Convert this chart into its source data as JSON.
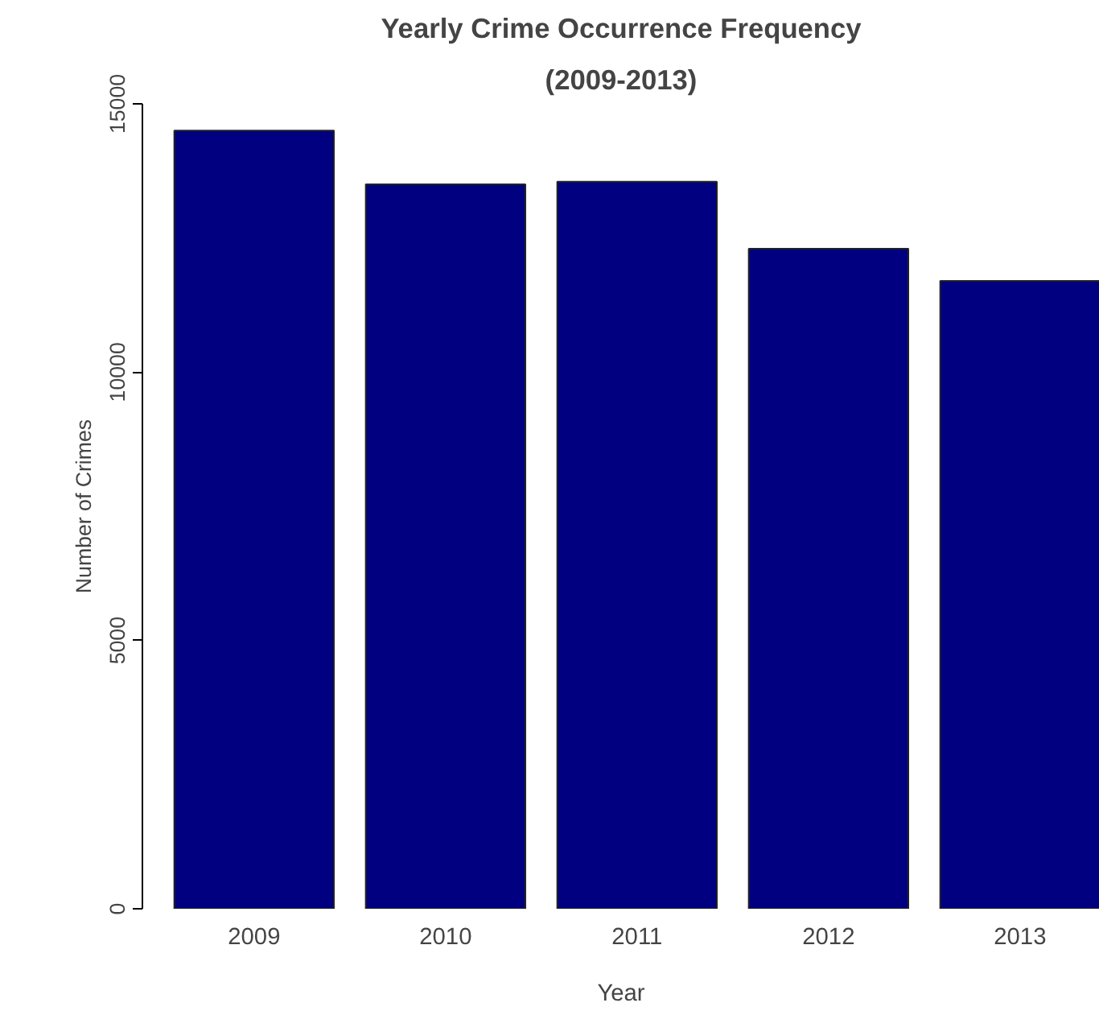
{
  "chart_data": {
    "type": "bar",
    "title": "Yearly Crime Occurrence Frequency",
    "subtitle": "(2009-2013)",
    "xlabel": "Year",
    "ylabel": "Number of Crimes",
    "categories": [
      "2009",
      "2010",
      "2011",
      "2012",
      "2013"
    ],
    "values": [
      14500,
      13500,
      13550,
      12300,
      11700
    ],
    "color": "#000080",
    "ylim": [
      0,
      15000
    ],
    "yticks": [
      0,
      5000,
      10000,
      15000
    ],
    "grid": false
  }
}
